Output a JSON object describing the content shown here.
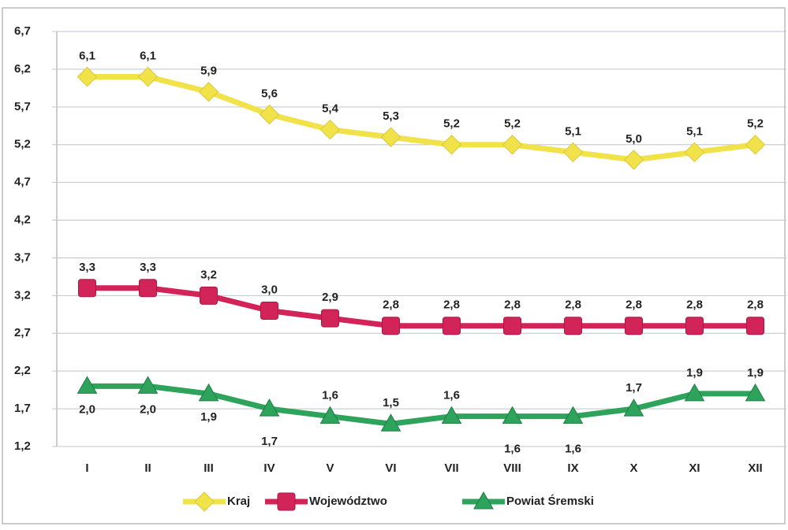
{
  "chart_data": {
    "type": "line",
    "categories": [
      "I",
      "II",
      "III",
      "IV",
      "V",
      "VI",
      "VII",
      "VIII",
      "IX",
      "X",
      "XI",
      "XII"
    ],
    "series": [
      {
        "name": "Kraj",
        "color": "#f2e24a",
        "values": [
          6.1,
          6.1,
          5.9,
          5.6,
          5.4,
          5.3,
          5.2,
          5.2,
          5.1,
          5.0,
          5.1,
          5.2
        ],
        "value_labels": [
          "6,1",
          "6,1",
          "5,9",
          "5,6",
          "5,4",
          "5,3",
          "5,2",
          "5,2",
          "5,1",
          "5,0",
          "5,1",
          "5,2"
        ]
      },
      {
        "name": "Województwo",
        "color": "#d3245a",
        "values": [
          3.3,
          3.3,
          3.2,
          3.0,
          2.9,
          2.8,
          2.8,
          2.8,
          2.8,
          2.8,
          2.8,
          2.8
        ],
        "value_labels": [
          "3,3",
          "3,3",
          "3,2",
          "3,0",
          "2,9",
          "2,8",
          "2,8",
          "2,8",
          "2,8",
          "2,8",
          "2,8",
          "2,8"
        ]
      },
      {
        "name": "Powiat Śremski",
        "color": "#2ea35c",
        "values": [
          2.0,
          2.0,
          1.9,
          1.7,
          1.6,
          1.5,
          1.6,
          1.6,
          1.6,
          1.7,
          1.9,
          1.9
        ],
        "value_labels": [
          "2,0",
          "2,0",
          "1,9",
          "1,7",
          "1,6",
          "1,5",
          "1,6",
          "1,6",
          "1,6",
          "1,7",
          "1,9",
          "1,9"
        ]
      }
    ],
    "ylim": [
      1.2,
      6.7
    ],
    "yticks": [
      {
        "value": 1.2,
        "label": "1,2"
      },
      {
        "value": 1.7,
        "label": "1,7"
      },
      {
        "value": 2.2,
        "label": "2,2"
      },
      {
        "value": 2.7,
        "label": "2,7"
      },
      {
        "value": 3.2,
        "label": "3,2"
      },
      {
        "value": 3.7,
        "label": "3,7"
      },
      {
        "value": 4.2,
        "label": "4,2"
      },
      {
        "value": 4.7,
        "label": "4,7"
      },
      {
        "value": 5.2,
        "label": "5,2"
      },
      {
        "value": 5.7,
        "label": "5,7"
      },
      {
        "value": 6.2,
        "label": "6,2"
      },
      {
        "value": 6.7,
        "label": "6,7"
      }
    ],
    "grid": true,
    "legend": "bottom"
  }
}
